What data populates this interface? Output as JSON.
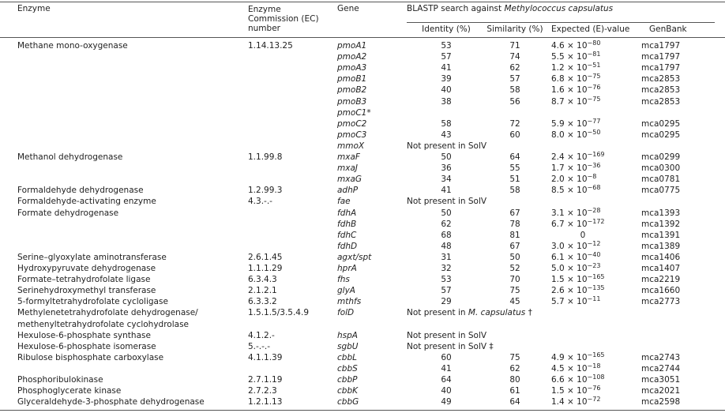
{
  "header": {
    "enzyme": "Enzyme",
    "ec": "Enzyme Commission (EC) number",
    "gene": "Gene",
    "blast": [
      {
        "text": "BLASTP search against "
      },
      {
        "text": "Methylococcus capsulatus",
        "italic": true
      }
    ],
    "identity": "Identity (%)",
    "similarity": "Similarity (%)",
    "evalue": "Expected (E)-value",
    "genbank": "GenBank"
  },
  "rows": [
    {
      "enzyme": "Methane mono-oxygenase",
      "ec": "1.14.13.25",
      "gene": "pmoA1",
      "identity": 53,
      "similarity": 71,
      "evalue": {
        "base": "4.6 × 10",
        "exp": "−80"
      },
      "genbank": "mca1797"
    },
    {
      "gene": "pmoA2",
      "identity": 57,
      "similarity": 74,
      "evalue": {
        "base": "5.5 × 10",
        "exp": "−81"
      },
      "genbank": "mca1797"
    },
    {
      "gene": "pmoA3",
      "identity": 41,
      "similarity": 62,
      "evalue": {
        "base": "1.2 × 10",
        "exp": "−51"
      },
      "genbank": "mca1797"
    },
    {
      "gene": "pmoB1",
      "identity": 39,
      "similarity": 57,
      "evalue": {
        "base": "6.8 × 10",
        "exp": "−75"
      },
      "genbank": "mca2853"
    },
    {
      "gene": "pmoB2",
      "identity": 40,
      "similarity": 58,
      "evalue": {
        "base": "1.6 × 10",
        "exp": "−76"
      },
      "genbank": "mca2853"
    },
    {
      "gene": "pmoB3",
      "identity": 38,
      "similarity": 56,
      "evalue": {
        "base": "8.7 × 10",
        "exp": "−75"
      },
      "genbank": "mca2853"
    },
    {
      "gene": "pmoC1*"
    },
    {
      "gene": "pmoC2",
      "identity": 58,
      "similarity": 72,
      "evalue": {
        "base": "5.9 × 10",
        "exp": "−77"
      },
      "genbank": "mca0295"
    },
    {
      "gene": "pmoC3",
      "identity": 43,
      "similarity": 60,
      "evalue": {
        "base": "8.0 × 10",
        "exp": "−50"
      },
      "genbank": "mca0295"
    },
    {
      "gene": "mmoX",
      "note": [
        {
          "text": "Not present in SolV"
        }
      ]
    },
    {
      "enzyme": "Methanol dehydrogenase",
      "ec": "1.1.99.8",
      "gene": "mxaF",
      "identity": 50,
      "similarity": 64,
      "evalue": {
        "base": "2.4 × 10",
        "exp": "−169"
      },
      "genbank": "mca0299"
    },
    {
      "gene": "mxaJ",
      "identity": 36,
      "similarity": 55,
      "evalue": {
        "base": "1.7 × 10",
        "exp": "−36"
      },
      "genbank": "mca0300"
    },
    {
      "gene": "mxaG",
      "identity": 34,
      "similarity": 51,
      "evalue": {
        "base": "2.0 × 10",
        "exp": "−8"
      },
      "genbank": "mca0781"
    },
    {
      "enzyme": "Formaldehyde dehydrogenase",
      "ec": "1.2.99.3",
      "gene": "adhP",
      "identity": 41,
      "similarity": 58,
      "evalue": {
        "base": "8.5 × 10",
        "exp": "−68"
      },
      "genbank": "mca0775"
    },
    {
      "enzyme": "Formaldehyde-activating enzyme",
      "ec": "4.3.-.-",
      "gene": "fae",
      "note": [
        {
          "text": "Not present in SolV"
        }
      ]
    },
    {
      "enzyme": "Formate dehydrogenase",
      "gene": "fdhA",
      "identity": 50,
      "similarity": 67,
      "evalue": {
        "base": "3.1 × 10",
        "exp": "−28"
      },
      "genbank": "mca1393"
    },
    {
      "gene": "fdhB",
      "identity": 62,
      "similarity": 78,
      "evalue": {
        "base": "6.7 × 10",
        "exp": "−172"
      },
      "genbank": "mca1392"
    },
    {
      "gene": "fdhC",
      "identity": 68,
      "similarity": 81,
      "evalue": {
        "base": "0"
      },
      "genbank": "mca1391"
    },
    {
      "gene": "fdhD",
      "identity": 48,
      "similarity": 67,
      "evalue": {
        "base": "3.0 × 10",
        "exp": "−12"
      },
      "genbank": "mca1389"
    },
    {
      "enzyme": "Serine–glyoxylate aminotransferase",
      "ec": "2.6.1.45",
      "gene": "agxt/spt",
      "identity": 31,
      "similarity": 50,
      "evalue": {
        "base": "6.1 × 10",
        "exp": "−40"
      },
      "genbank": "mca1406"
    },
    {
      "enzyme": "Hydroxypyruvate dehydrogenase",
      "ec": "1.1.1.29",
      "gene": "hprA",
      "identity": 32,
      "similarity": 52,
      "evalue": {
        "base": "5.0 × 10",
        "exp": "−23"
      },
      "genbank": "mca1407"
    },
    {
      "enzyme": "Formate–tetrahydrofolate ligase",
      "ec": "6.3.4.3",
      "gene": "fhs",
      "identity": 53,
      "similarity": 70,
      "evalue": {
        "base": "1.5 × 10",
        "exp": "−165"
      },
      "genbank": "mca2219"
    },
    {
      "enzyme": "Serinehydroxymethyl transferase",
      "ec": "2.1.2.1",
      "gene": "glyA",
      "identity": 57,
      "similarity": 75,
      "evalue": {
        "base": "2.6 × 10",
        "exp": "−135"
      },
      "genbank": "mca1660"
    },
    {
      "enzyme": "5-formyltetrahydrofolate cycloligase",
      "ec": "6.3.3.2",
      "gene": "mthfs",
      "identity": 29,
      "similarity": 45,
      "evalue": {
        "base": "5.7 × 10",
        "exp": "−11"
      },
      "genbank": "mca2773"
    },
    {
      "enzyme": [
        "Methylenetetrahydrofolate dehydrogenase/",
        "methenyltetrahydrofolate cyclohydrolase"
      ],
      "ec": "1.5.1.5/3.5.4.9",
      "gene": "folD",
      "note": [
        {
          "text": "Not present in "
        },
        {
          "text": "M. capsulatus",
          "italic": true
        },
        {
          "text": " †"
        }
      ]
    },
    {
      "enzyme": "Hexulose-6-phosphate synthase",
      "ec": "4.1.2.-",
      "gene": "hspA",
      "note": [
        {
          "text": "Not present in SolV"
        }
      ]
    },
    {
      "enzyme": "Hexulose-6-phosphate isomerase",
      "ec": "5.-.-.-",
      "gene": "sgbU",
      "note": [
        {
          "text": "Not present in SolV ‡"
        }
      ]
    },
    {
      "enzyme": "Ribulose bisphosphate carboxylase",
      "ec": "4.1.1.39",
      "gene": "cbbL",
      "identity": 60,
      "similarity": 75,
      "evalue": {
        "base": "4.9 × 10",
        "exp": "−165"
      },
      "genbank": "mca2743"
    },
    {
      "gene": "cbbS",
      "identity": 41,
      "similarity": 62,
      "evalue": {
        "base": "4.5 × 10",
        "exp": "−18"
      },
      "genbank": "mca2744"
    },
    {
      "enzyme": "Phosphoribulokinase",
      "ec": "2.7.1.19",
      "gene": "cbbP",
      "identity": 64,
      "similarity": 80,
      "evalue": {
        "base": "6.6 × 10",
        "exp": "−108"
      },
      "genbank": "mca3051"
    },
    {
      "enzyme": "Phosphoglycerate kinase",
      "ec": "2.7.2.3",
      "gene": "cbbK",
      "identity": 40,
      "similarity": 61,
      "evalue": {
        "base": "1.5 × 10",
        "exp": "−76"
      },
      "genbank": "mca2021"
    },
    {
      "enzyme": "Glyceraldehyde-3-phosphate dehydrogenase",
      "ec": "1.2.1.13",
      "gene": "cbbG",
      "identity": 49,
      "similarity": 64,
      "evalue": {
        "base": "1.4 × 10",
        "exp": "−72"
      },
      "genbank": "mca2598"
    }
  ]
}
